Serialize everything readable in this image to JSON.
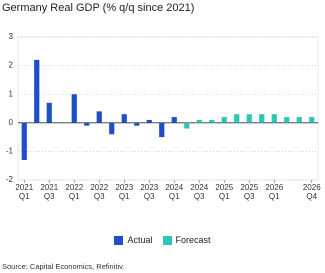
{
  "chart_data": {
    "type": "bar",
    "title": "Germany Real GDP (% q/q since 2021)",
    "categories": [
      "2021 Q1",
      null,
      "2021 Q3",
      null,
      "2022 Q1",
      null,
      "2022 Q3",
      null,
      "2023 Q1",
      null,
      "2023 Q3",
      null,
      "2024 Q1",
      null,
      "2024 Q3",
      null,
      "2025 Q1",
      null,
      "2025 Q3",
      null,
      "2026 Q1",
      null,
      null,
      "2026 Q4"
    ],
    "series": [
      {
        "name": "Actual",
        "color": "#1f4fc8",
        "values": [
          -1.3,
          2.2,
          0.7,
          0.0,
          1.0,
          -0.1,
          0.4,
          -0.4,
          0.3,
          -0.1,
          0.1,
          -0.5,
          0.2,
          null,
          null,
          null,
          null,
          null,
          null,
          null,
          null,
          null,
          null,
          null
        ]
      },
      {
        "name": "Forecast",
        "color": "#2ec4b6",
        "values": [
          null,
          null,
          null,
          null,
          null,
          null,
          null,
          null,
          null,
          null,
          null,
          null,
          null,
          -0.2,
          0.1,
          0.1,
          0.2,
          0.3,
          0.3,
          0.3,
          0.3,
          0.2,
          0.2,
          0.2
        ]
      }
    ],
    "ylim": [
      -2,
      3
    ],
    "yticks": [
      -2,
      -1,
      0,
      1,
      2,
      3
    ],
    "grid": true,
    "source": "Source: Capital Economics, Refinitiv."
  }
}
